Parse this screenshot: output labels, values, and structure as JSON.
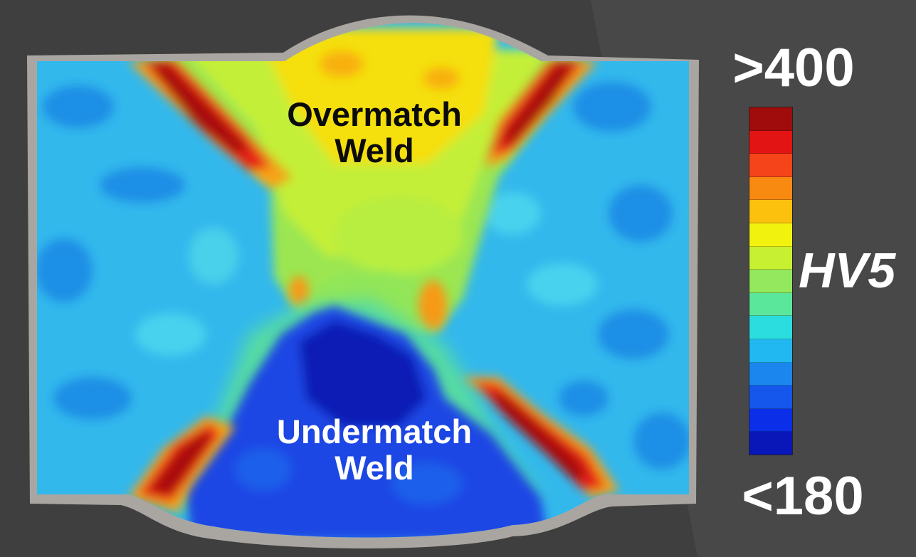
{
  "chart_data": {
    "type": "heatmap",
    "title": "",
    "xlabel": "",
    "ylabel": "",
    "colorbar": {
      "label": "HV5",
      "max_label": ">400",
      "min_label": "<180",
      "colors_top_to_bottom": [
        "#a00c0c",
        "#e31414",
        "#f6441a",
        "#f88a12",
        "#fbc10c",
        "#f2f20f",
        "#c8f032",
        "#93e85d",
        "#5ae79c",
        "#2cdde0",
        "#21b7f0",
        "#1a86ee",
        "#1556ec",
        "#0b2ee8",
        "#0a17b8"
      ]
    },
    "annotations": [
      {
        "text_lines": [
          "Overmatch",
          "Weld"
        ],
        "text_color": "#0b0b0b"
      },
      {
        "text_lines": [
          "Undermatch",
          "Weld"
        ],
        "text_color": "#ffffff"
      }
    ],
    "regions": [
      {
        "region": "base metal",
        "hardness_class": "mid-low (cyan/light blue)"
      },
      {
        "region": "overmatch weld cap",
        "hardness_class": "high (yellow/orange)"
      },
      {
        "region": "overmatch weld root",
        "hardness_class": "mid (green)"
      },
      {
        "region": "heat-affected zones",
        "hardness_class": ">400 (red)"
      },
      {
        "region": "undermatch weld",
        "hardness_class": "<180 (dark blue)"
      }
    ]
  }
}
